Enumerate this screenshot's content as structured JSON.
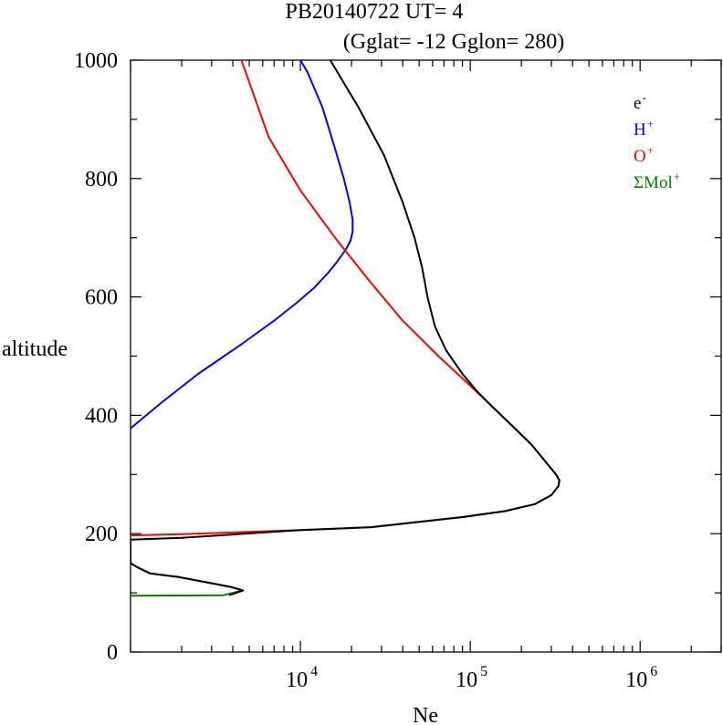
{
  "chart_data": {
    "type": "line",
    "title": "PB20140722   UT=  4",
    "subtitle": "(Gglat= -12   Gglon=  280)",
    "xlabel": "Ne",
    "ylabel": "altitude",
    "x_scale": "log",
    "xlim": [
      1000,
      3000000
    ],
    "ylim": [
      0,
      1000
    ],
    "x_ticks": [
      {
        "value": 10000,
        "base": "10",
        "exp": "4"
      },
      {
        "value": 100000,
        "base": "10",
        "exp": "5"
      },
      {
        "value": 1000000,
        "base": "10",
        "exp": "6"
      }
    ],
    "y_ticks": [
      {
        "value": 0,
        "label": "0"
      },
      {
        "value": 200,
        "label": "200"
      },
      {
        "value": 400,
        "label": "400"
      },
      {
        "value": 600,
        "label": "600"
      },
      {
        "value": 800,
        "label": "800"
      },
      {
        "value": 1000,
        "label": "1000"
      }
    ],
    "legend_position": "top-right",
    "series": [
      {
        "name": "e",
        "sup": "-",
        "color": "#000000",
        "points": [
          [
            3800,
            96
          ],
          [
            4600,
            104
          ],
          [
            3900,
            110
          ],
          [
            1900,
            127
          ],
          [
            1300,
            133
          ],
          [
            1100,
            143
          ],
          [
            1000,
            150
          ],
          [
            1000,
            190
          ],
          [
            2000,
            193
          ],
          [
            10000,
            206
          ],
          [
            26000,
            211
          ],
          [
            50000,
            220
          ],
          [
            90000,
            228
          ],
          [
            160000,
            238
          ],
          [
            240000,
            250
          ],
          [
            300000,
            265
          ],
          [
            330000,
            280
          ],
          [
            335000,
            290
          ],
          [
            320000,
            300
          ],
          [
            280000,
            320
          ],
          [
            230000,
            350
          ],
          [
            180000,
            380
          ],
          [
            140000,
            410
          ],
          [
            110000,
            440
          ],
          [
            90000,
            470
          ],
          [
            72000,
            510
          ],
          [
            62000,
            550
          ],
          [
            56000,
            600
          ],
          [
            52000,
            650
          ],
          [
            47000,
            700
          ],
          [
            40000,
            760
          ],
          [
            31000,
            840
          ],
          [
            22000,
            920
          ],
          [
            15000,
            1000
          ]
        ]
      },
      {
        "name": "H",
        "sup": "+",
        "color": "#0000ff",
        "points": [
          [
            1000,
            378
          ],
          [
            1500,
            420
          ],
          [
            2500,
            470
          ],
          [
            4500,
            520
          ],
          [
            7000,
            560
          ],
          [
            9500,
            590
          ],
          [
            12000,
            615
          ],
          [
            14500,
            640
          ],
          [
            16500,
            660
          ],
          [
            18500,
            680
          ],
          [
            19700,
            695
          ],
          [
            20300,
            710
          ],
          [
            20300,
            730
          ],
          [
            19500,
            760
          ],
          [
            18000,
            800
          ],
          [
            16000,
            850
          ],
          [
            13500,
            920
          ],
          [
            11000,
            980
          ],
          [
            10000,
            1000
          ]
        ]
      },
      {
        "name": "O",
        "sup": "+",
        "color": "#ff0000",
        "points": [
          [
            1000,
            197
          ],
          [
            2000,
            199
          ],
          [
            10000,
            206
          ],
          [
            26000,
            211
          ],
          [
            50000,
            220
          ],
          [
            90000,
            228
          ],
          [
            160000,
            238
          ],
          [
            240000,
            250
          ],
          [
            300000,
            265
          ],
          [
            330000,
            280
          ],
          [
            335000,
            290
          ],
          [
            320000,
            300
          ],
          [
            280000,
            320
          ],
          [
            230000,
            350
          ],
          [
            180000,
            380
          ],
          [
            140000,
            410
          ],
          [
            100000,
            450
          ],
          [
            65000,
            500
          ],
          [
            40000,
            560
          ],
          [
            25000,
            630
          ],
          [
            16000,
            700
          ],
          [
            10000,
            780
          ],
          [
            6500,
            870
          ],
          [
            4500,
            1000
          ]
        ]
      },
      {
        "name": "ΣMol",
        "sup": "+",
        "color": "#008000",
        "points": [
          [
            1000,
            95
          ],
          [
            3500,
            96
          ],
          [
            4600,
            104
          ],
          [
            3900,
            110
          ],
          [
            1900,
            127
          ],
          [
            1300,
            133
          ],
          [
            1100,
            143
          ],
          [
            1000,
            150
          ]
        ]
      }
    ]
  }
}
